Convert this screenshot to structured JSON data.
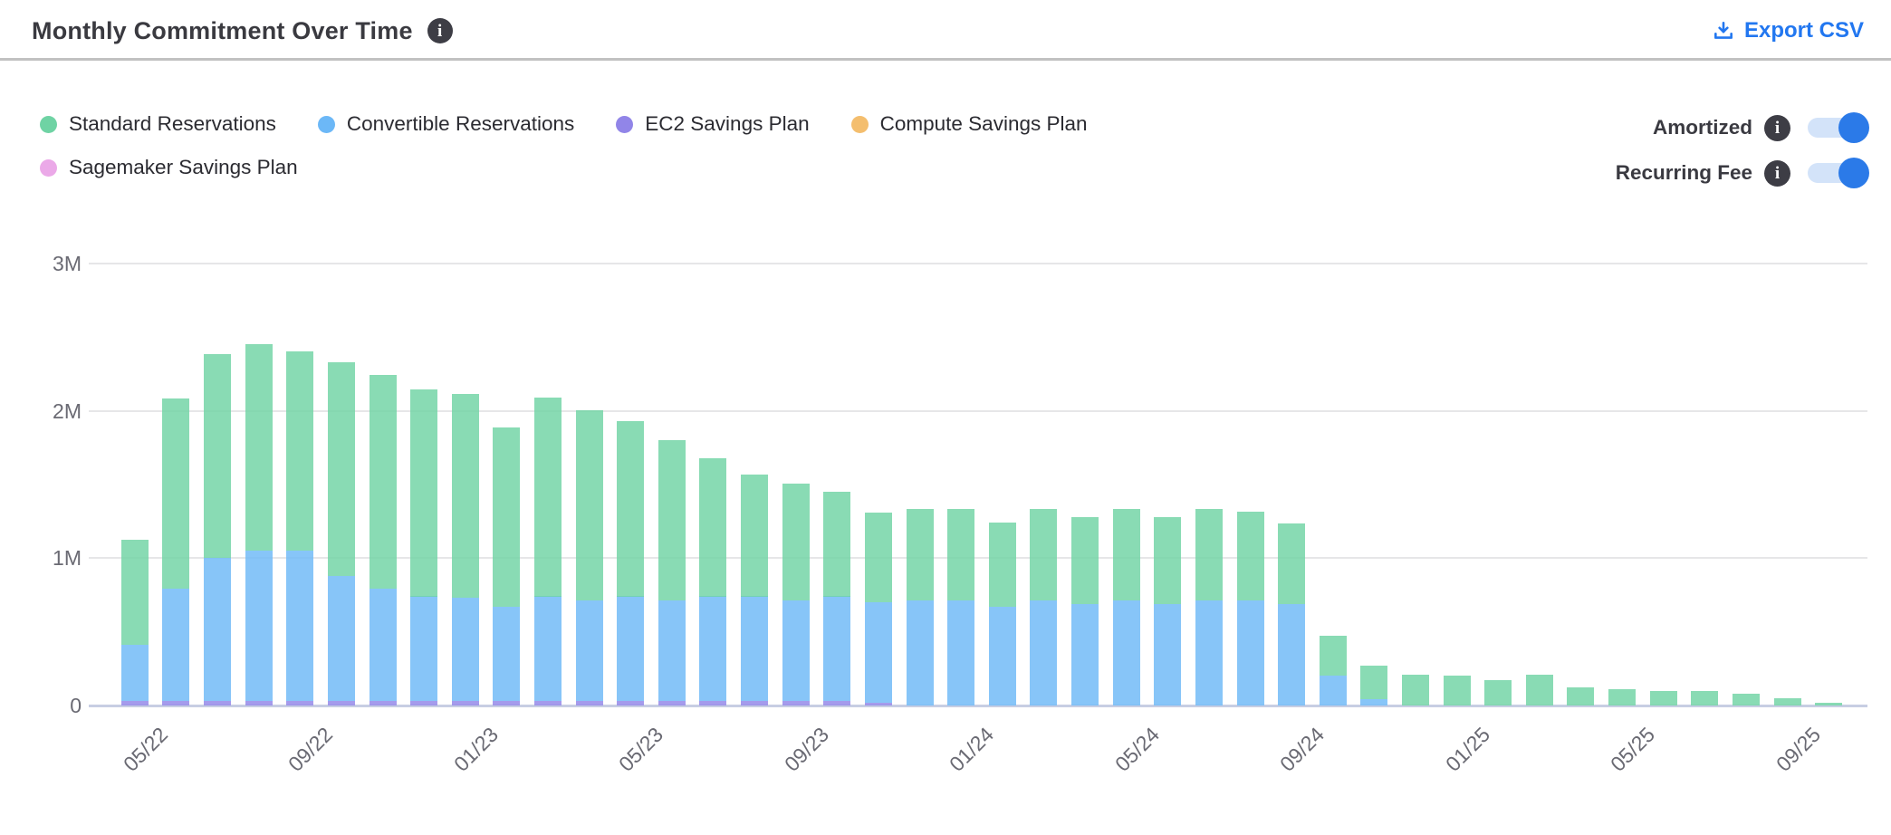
{
  "header": {
    "title": "Monthly Commitment Over Time",
    "title_info_icon": "info-icon",
    "export_label": "Export CSV",
    "export_color": "#2277f0"
  },
  "legend": {
    "items": [
      {
        "label": "Standard Reservations",
        "color": "#6fd3a4"
      },
      {
        "label": "Convertible Reservations",
        "color": "#6cb8f7"
      },
      {
        "label": "EC2 Savings Plan",
        "color": "#9185e8"
      },
      {
        "label": "Compute Savings Plan",
        "color": "#f4be6e"
      },
      {
        "label": "Sagemaker Savings Plan",
        "color": "#eba9e8"
      }
    ]
  },
  "toggles": [
    {
      "label": "Amortized",
      "state": "on"
    },
    {
      "label": "Recurring Fee",
      "state": "on"
    }
  ],
  "toggle_colors": {
    "track": "#d3e3f9",
    "knob": "#2b7ae8"
  },
  "chart_data": {
    "type": "bar",
    "stacked": true,
    "unit": "millions",
    "ylim": [
      0,
      3
    ],
    "y_ticks": [
      "0",
      "1M",
      "2M",
      "3M"
    ],
    "grid": true,
    "legend_position": "top-left",
    "x": [
      "05/22",
      "06/22",
      "07/22",
      "08/22",
      "09/22",
      "10/22",
      "11/22",
      "12/22",
      "01/23",
      "02/23",
      "03/23",
      "04/23",
      "05/23",
      "06/23",
      "07/23",
      "08/23",
      "09/23",
      "10/23",
      "11/23",
      "12/23",
      "01/24",
      "02/24",
      "03/24",
      "04/24",
      "05/24",
      "06/24",
      "07/24",
      "08/24",
      "09/24",
      "10/24",
      "11/24",
      "12/24",
      "01/25",
      "02/25",
      "03/25",
      "04/25",
      "05/25",
      "06/25",
      "07/25",
      "08/25",
      "09/25",
      "10/25"
    ],
    "x_tick_shown_indices": [
      0,
      4,
      8,
      12,
      16,
      20,
      24,
      28,
      32,
      36,
      40
    ],
    "x_tick_shown_labels": [
      "05/22",
      "09/22",
      "01/23",
      "05/23",
      "09/23",
      "01/24",
      "05/24",
      "09/24",
      "01/25",
      "05/25",
      "09/25"
    ],
    "series": [
      {
        "name": "EC2 Savings Plan",
        "color": "#9185e8",
        "values": [
          0.03,
          0.03,
          0.03,
          0.03,
          0.03,
          0.03,
          0.03,
          0.03,
          0.03,
          0.03,
          0.03,
          0.03,
          0.03,
          0.03,
          0.03,
          0.03,
          0.03,
          0.03,
          0.02,
          0,
          0,
          0,
          0,
          0,
          0,
          0,
          0,
          0,
          0,
          0,
          0,
          0,
          0,
          0,
          0,
          0,
          0,
          0,
          0,
          0,
          0,
          0
        ]
      },
      {
        "name": "Convertible Reservations",
        "color": "#6cb8f7",
        "values": [
          0.38,
          0.76,
          0.97,
          1.02,
          1.02,
          0.85,
          0.76,
          0.71,
          0.7,
          0.64,
          0.71,
          0.68,
          0.71,
          0.68,
          0.71,
          0.71,
          0.68,
          0.71,
          0.68,
          0.71,
          0.71,
          0.67,
          0.71,
          0.69,
          0.71,
          0.69,
          0.71,
          0.71,
          0.69,
          0.2,
          0.04,
          0,
          0,
          0,
          0,
          0,
          0,
          0,
          0,
          0,
          0,
          0
        ]
      },
      {
        "name": "Standard Reservations",
        "color": "#6fd3a4",
        "values": [
          0.71,
          1.29,
          1.38,
          1.4,
          1.35,
          1.45,
          1.45,
          1.41,
          1.38,
          1.22,
          1.35,
          1.29,
          1.19,
          1.09,
          0.94,
          0.83,
          0.79,
          0.71,
          0.61,
          0.62,
          0.62,
          0.57,
          0.62,
          0.59,
          0.62,
          0.59,
          0.62,
          0.6,
          0.55,
          0.27,
          0.23,
          0.21,
          0.2,
          0.17,
          0.21,
          0.12,
          0.11,
          0.1,
          0.1,
          0.08,
          0.05,
          0.02
        ]
      },
      {
        "name": "Compute Savings Plan",
        "color": "#f4be6e",
        "values": [
          0,
          0,
          0,
          0,
          0,
          0,
          0,
          0,
          0,
          0,
          0,
          0,
          0,
          0,
          0,
          0,
          0,
          0,
          0,
          0,
          0,
          0,
          0,
          0,
          0,
          0,
          0,
          0,
          0,
          0,
          0,
          0,
          0,
          0,
          0,
          0,
          0,
          0,
          0,
          0,
          0,
          0
        ]
      },
      {
        "name": "Sagemaker Savings Plan",
        "color": "#eba9e8",
        "values": [
          0,
          0,
          0,
          0,
          0,
          0,
          0,
          0,
          0,
          0,
          0,
          0,
          0,
          0,
          0,
          0,
          0,
          0,
          0,
          0,
          0,
          0,
          0,
          0,
          0,
          0,
          0,
          0,
          0,
          0,
          0,
          0,
          0,
          0,
          0,
          0,
          0,
          0,
          0,
          0,
          0,
          0
        ]
      }
    ],
    "totals": [
      1.12,
      2.08,
      2.38,
      2.45,
      2.4,
      2.33,
      2.24,
      2.15,
      2.11,
      1.89,
      2.09,
      2.0,
      1.93,
      1.8,
      1.68,
      1.57,
      1.5,
      1.45,
      1.31,
      1.33,
      1.33,
      1.24,
      1.33,
      1.28,
      1.33,
      1.28,
      1.33,
      1.31,
      1.24,
      0.47,
      0.27,
      0.21,
      0.2,
      0.17,
      0.21,
      0.12,
      0.11,
      0.1,
      0.1,
      0.08,
      0.05,
      0.02
    ]
  }
}
